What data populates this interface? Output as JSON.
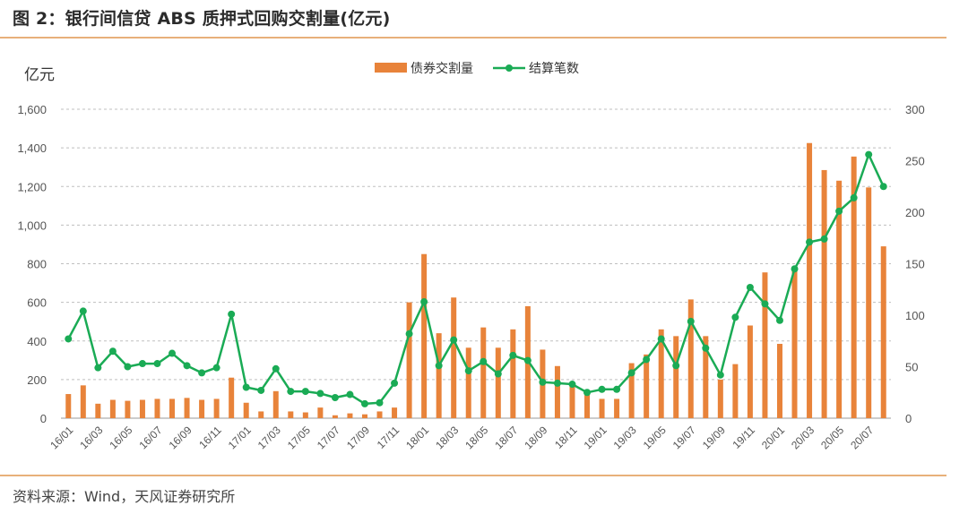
{
  "title": "图 2：银行间信贷 ABS 质押式回购交割量(亿元)",
  "source": "资料来源：Wind，天风证券研究所",
  "chart_data": {
    "type": "bar",
    "ylabel": "亿元",
    "ylim": [
      0,
      1600
    ],
    "y2lim": [
      0,
      300
    ],
    "yticks": [
      "0",
      "200",
      "400",
      "600",
      "800",
      "1,000",
      "1,200",
      "1,400",
      "1,600"
    ],
    "y2ticks": [
      "0",
      "50",
      "100",
      "150",
      "200",
      "250",
      "300"
    ],
    "grid": true,
    "legend_position": "top-center",
    "categories": [
      "16/01",
      "16/02",
      "16/03",
      "16/04",
      "16/05",
      "16/06",
      "16/07",
      "16/08",
      "16/09",
      "16/10",
      "16/11",
      "16/12",
      "17/01",
      "17/02",
      "17/03",
      "17/04",
      "17/05",
      "17/06",
      "17/07",
      "17/08",
      "17/09",
      "17/10",
      "17/11",
      "17/12",
      "18/01",
      "18/02",
      "18/03",
      "18/04",
      "18/05",
      "18/06",
      "18/07",
      "18/08",
      "18/09",
      "18/10",
      "18/11",
      "18/12",
      "19/01",
      "19/02",
      "19/03",
      "19/04",
      "19/05",
      "19/06",
      "19/07",
      "19/08",
      "19/09",
      "19/10",
      "19/11",
      "19/12",
      "20/01",
      "20/02",
      "20/03",
      "20/04",
      "20/05",
      "20/06",
      "20/07",
      "20/08"
    ],
    "xtick_labels": [
      "16/01",
      "16/03",
      "16/05",
      "16/07",
      "16/09",
      "16/11",
      "17/01",
      "17/03",
      "17/05",
      "17/07",
      "17/09",
      "17/11",
      "18/01",
      "18/03",
      "18/05",
      "18/07",
      "18/09",
      "18/11",
      "19/01",
      "19/03",
      "19/05",
      "19/07",
      "19/09",
      "19/11",
      "20/01",
      "20/03",
      "20/05",
      "20/07"
    ],
    "series": [
      {
        "name": "债券交割量",
        "kind": "bar",
        "axis": "left",
        "color": "#e8833a",
        "values": [
          125,
          170,
          75,
          95,
          90,
          95,
          100,
          100,
          105,
          95,
          100,
          210,
          80,
          35,
          140,
          35,
          30,
          55,
          15,
          25,
          20,
          35,
          55,
          600,
          850,
          440,
          625,
          365,
          470,
          365,
          460,
          580,
          355,
          270,
          185,
          120,
          100,
          100,
          285,
          330,
          460,
          425,
          615,
          425,
          200,
          280,
          480,
          755,
          385,
          770,
          1425,
          1285,
          1230,
          1355,
          1195,
          890
        ]
      },
      {
        "name": "结算笔数",
        "kind": "line",
        "axis": "right",
        "color": "#1aab55",
        "values": [
          77,
          104,
          49,
          65,
          50,
          53,
          53,
          63,
          51,
          44,
          49,
          101,
          30,
          27,
          48,
          26,
          26,
          24,
          20,
          23,
          14,
          15,
          34,
          82,
          113,
          51,
          76,
          46,
          55,
          43,
          61,
          56,
          35,
          34,
          33,
          25,
          28,
          28,
          44,
          57,
          77,
          51,
          94,
          68,
          42,
          98,
          127,
          111,
          95,
          145,
          171,
          174,
          201,
          214,
          256,
          225
        ]
      }
    ]
  }
}
